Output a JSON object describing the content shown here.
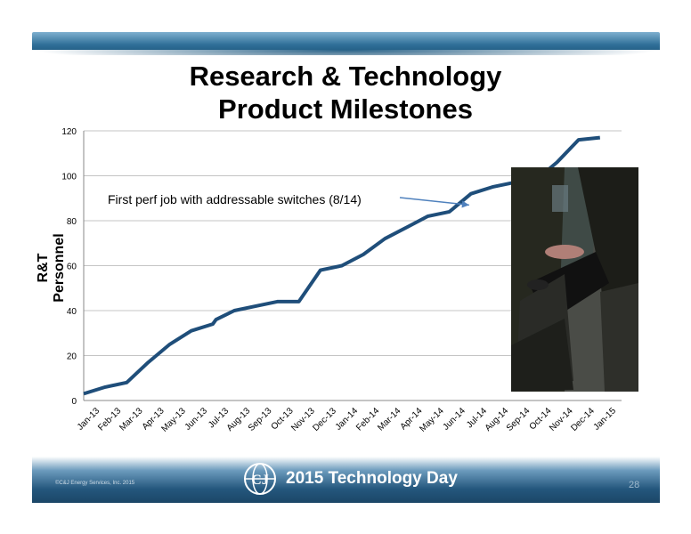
{
  "header": {
    "title_line1": "Research & Technology",
    "title_line2": "Product Milestones"
  },
  "chart_data": {
    "type": "line",
    "title": "Research & Technology Product Milestones",
    "ylabel": "R&T Personnel",
    "xlabel": "",
    "ylim": [
      0,
      120
    ],
    "yticks": [
      0,
      20,
      40,
      60,
      80,
      100,
      120
    ],
    "grid": true,
    "categories": [
      "Jan-13",
      "Feb-13",
      "Mar-13",
      "Apr-13",
      "May-13",
      "Jun-13",
      "Jul-13",
      "Aug-13",
      "Sep-13",
      "Oct-13",
      "Nov-13",
      "Dec-13",
      "Jan-14",
      "Feb-14",
      "Mar-14",
      "Apr-14",
      "May-14",
      "Jun-14",
      "Jul-14",
      "Aug-14",
      "Sep-14",
      "Oct-14",
      "Nov-14",
      "Dec-14",
      "Jan-15"
    ],
    "series": [
      {
        "color": "#1f4e7a",
        "points": [
          [
            "Jan-13",
            3
          ],
          [
            "Feb-13",
            6
          ],
          [
            "Mar-13",
            8
          ],
          [
            "Apr-13",
            17
          ],
          [
            "May-13",
            25
          ],
          [
            "Jun-13",
            31
          ],
          [
            "Jul-13",
            34
          ],
          [
            "Jul-13+",
            36
          ],
          [
            "Aug-13",
            40
          ],
          [
            "Sep-13",
            42
          ],
          [
            "Oct-13",
            44
          ],
          [
            "Nov-13",
            44
          ],
          [
            "Dec-13",
            58
          ],
          [
            "Jan-14",
            60
          ],
          [
            "Feb-14",
            65
          ],
          [
            "Mar-14",
            72
          ],
          [
            "Apr-14",
            77
          ],
          [
            "May-14",
            82
          ],
          [
            "Jun-14",
            84
          ],
          [
            "Jul-14",
            92
          ],
          [
            "Aug-14",
            95
          ],
          [
            "Sep-14",
            97
          ],
          [
            "Oct-14",
            98
          ],
          [
            "Nov-14",
            106
          ],
          [
            "Dec-14",
            116
          ],
          [
            "Jan-15",
            117
          ]
        ]
      }
    ],
    "annotations": [
      {
        "text": "First perf job with addressable switches (8/14)",
        "target": "Jul-14",
        "target_value": 87
      }
    ]
  },
  "footer": {
    "copyright": "©C&J Energy Services, Inc. 2015",
    "event_title": "2015 Technology Day",
    "page_number": "28"
  },
  "photo": {
    "description_icon": "photo-image"
  }
}
